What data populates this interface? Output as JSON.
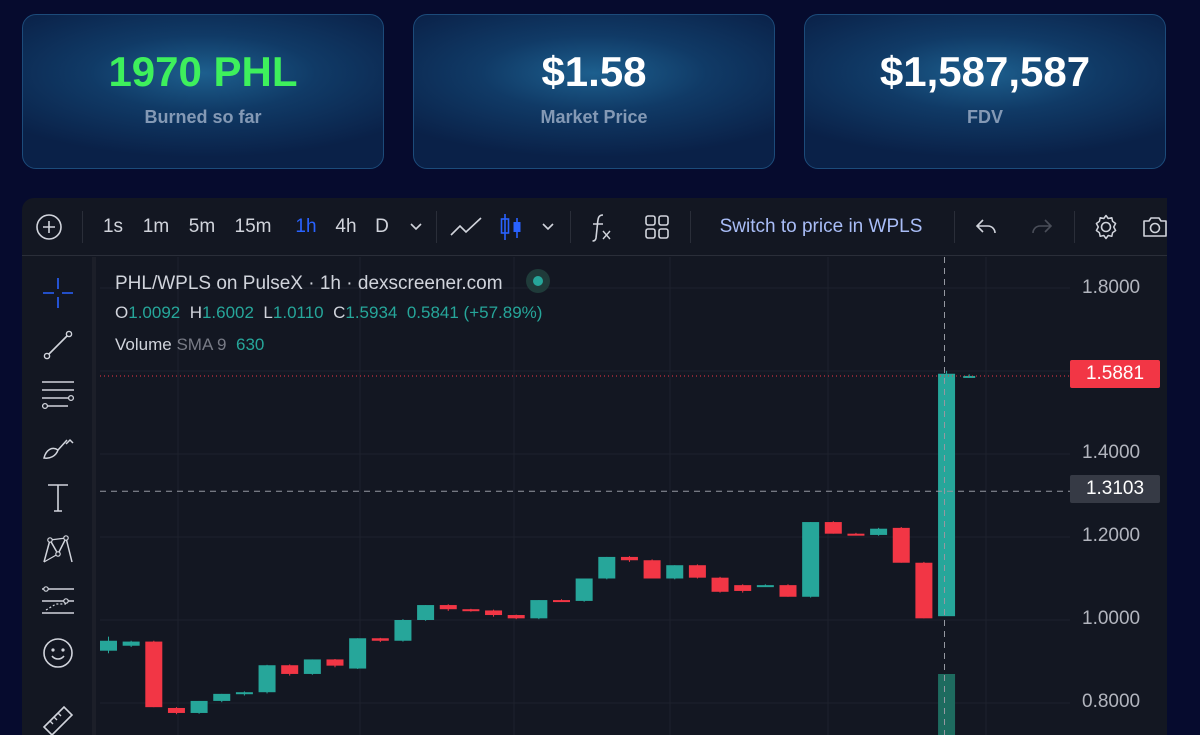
{
  "stats": [
    {
      "value": "1970 PHL",
      "label": "Burned so far"
    },
    {
      "value": "$1.58",
      "label": "Market Price"
    },
    {
      "value": "$1,587,587",
      "label": "FDV"
    }
  ],
  "toolbar": {
    "intervals": [
      "1s",
      "1m",
      "5m",
      "15m",
      "1h",
      "4h",
      "D"
    ],
    "active_interval": "1h",
    "switch_label": "Switch to price in WPLS"
  },
  "legend": {
    "title": "PHL/WPLS on PulseX · 1h · dexscreener.com",
    "o_label": "O",
    "o": "1.0092",
    "h_label": "H",
    "h": "1.6002",
    "l_label": "L",
    "l": "1.0110",
    "c_label": "C",
    "c": "1.5934",
    "change": "0.5841 (+57.89%)",
    "volume_label": "Volume",
    "sma_label": "SMA 9",
    "volume_value": "630"
  },
  "price_axis": {
    "ticks": [
      "1.8000",
      "1.4000",
      "1.2000",
      "1.0000",
      "0.8000"
    ],
    "last_price": "1.5881",
    "crosshair_price": "1.3103"
  },
  "colors": {
    "up": "#26a69a",
    "down": "#f23645",
    "accent": "#2962ff",
    "burn": "#3ef05c"
  },
  "chart_data": {
    "type": "candlestick",
    "pair": "PHL/WPLS",
    "interval": "1h",
    "ylim": [
      0.72,
      1.82
    ],
    "candles": [
      {
        "o": 0.926,
        "h": 0.96,
        "l": 0.92,
        "c": 0.95
      },
      {
        "o": 0.938,
        "h": 0.95,
        "l": 0.935,
        "c": 0.948
      },
      {
        "o": 0.948,
        "h": 0.95,
        "l": 0.79,
        "c": 0.79
      },
      {
        "o": 0.788,
        "h": 0.79,
        "l": 0.773,
        "c": 0.776
      },
      {
        "o": 0.776,
        "h": 0.805,
        "l": 0.774,
        "c": 0.805
      },
      {
        "o": 0.805,
        "h": 0.822,
        "l": 0.802,
        "c": 0.822
      },
      {
        "o": 0.822,
        "h": 0.828,
        "l": 0.818,
        "c": 0.826
      },
      {
        "o": 0.826,
        "h": 0.892,
        "l": 0.823,
        "c": 0.891
      },
      {
        "o": 0.891,
        "h": 0.893,
        "l": 0.866,
        "c": 0.87
      },
      {
        "o": 0.87,
        "h": 0.905,
        "l": 0.868,
        "c": 0.905
      },
      {
        "o": 0.905,
        "h": 0.906,
        "l": 0.886,
        "c": 0.89
      },
      {
        "o": 0.883,
        "h": 0.956,
        "l": 0.882,
        "c": 0.956
      },
      {
        "o": 0.956,
        "h": 0.957,
        "l": 0.947,
        "c": 0.95
      },
      {
        "o": 0.95,
        "h": 1.002,
        "l": 0.948,
        "c": 1.0
      },
      {
        "o": 1.0,
        "h": 1.036,
        "l": 0.998,
        "c": 1.036
      },
      {
        "o": 1.036,
        "h": 1.038,
        "l": 1.022,
        "c": 1.026
      },
      {
        "o": 1.026,
        "h": 1.027,
        "l": 1.02,
        "c": 1.023
      },
      {
        "o": 1.023,
        "h": 1.025,
        "l": 1.008,
        "c": 1.012
      },
      {
        "o": 1.012,
        "h": 1.013,
        "l": 1.002,
        "c": 1.004
      },
      {
        "o": 1.004,
        "h": 1.048,
        "l": 1.002,
        "c": 1.048
      },
      {
        "o": 1.048,
        "h": 1.05,
        "l": 1.044,
        "c": 1.046
      },
      {
        "o": 1.046,
        "h": 1.1,
        "l": 1.044,
        "c": 1.1
      },
      {
        "o": 1.1,
        "h": 1.152,
        "l": 1.098,
        "c": 1.152
      },
      {
        "o": 1.152,
        "h": 1.154,
        "l": 1.14,
        "c": 1.144
      },
      {
        "o": 1.144,
        "h": 1.146,
        "l": 1.1,
        "c": 1.1
      },
      {
        "o": 1.1,
        "h": 1.132,
        "l": 1.098,
        "c": 1.132
      },
      {
        "o": 1.132,
        "h": 1.134,
        "l": 1.1,
        "c": 1.102
      },
      {
        "o": 1.102,
        "h": 1.104,
        "l": 1.066,
        "c": 1.068
      },
      {
        "o": 1.084,
        "h": 1.086,
        "l": 1.066,
        "c": 1.07
      },
      {
        "o": 1.082,
        "h": 1.086,
        "l": 1.08,
        "c": 1.084
      },
      {
        "o": 1.084,
        "h": 1.086,
        "l": 1.056,
        "c": 1.056
      },
      {
        "o": 1.056,
        "h": 1.236,
        "l": 1.054,
        "c": 1.236
      },
      {
        "o": 1.236,
        "h": 1.238,
        "l": 1.208,
        "c": 1.208
      },
      {
        "o": 1.208,
        "h": 1.21,
        "l": 1.204,
        "c": 1.205
      },
      {
        "o": 1.205,
        "h": 1.222,
        "l": 1.203,
        "c": 1.22
      },
      {
        "o": 1.222,
        "h": 1.224,
        "l": 1.138,
        "c": 1.138
      },
      {
        "o": 1.138,
        "h": 1.14,
        "l": 1.004,
        "c": 1.004
      },
      {
        "o": 1.0092,
        "h": 1.6002,
        "l": 1.011,
        "c": 1.5934
      },
      {
        "o": 1.5881,
        "h": 1.592,
        "l": 1.584,
        "c": 1.5881
      }
    ],
    "volume_bars": [
      {
        "value": 630
      }
    ]
  }
}
